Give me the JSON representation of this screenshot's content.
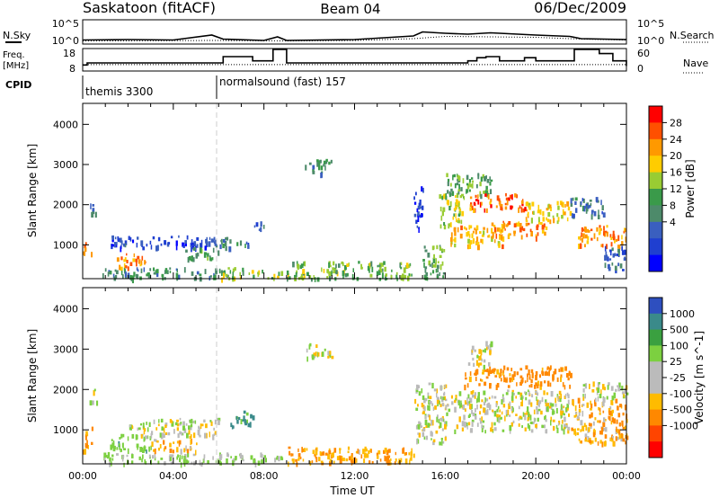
{
  "header": {
    "station": "Saskatoon (fitACF)",
    "beam": "Beam 04",
    "date": "06/Dec/2009"
  },
  "noise_panel": {
    "left_label": "N.Sky",
    "right_label": "N.Search",
    "left_ticks": [
      "10^5",
      "10^0"
    ],
    "right_ticks": [
      "10^5",
      "10^0"
    ]
  },
  "freq_panel": {
    "left_label_line1": "Freq.",
    "left_label_line2": "[MHz]",
    "right_label": "Nave",
    "left_ticks": [
      "18",
      "8"
    ],
    "right_ticks": [
      "60",
      "0"
    ]
  },
  "cpid_panel": {
    "label": "CPID",
    "segments": [
      {
        "start_hour": 0.0,
        "end_hour": 6.0,
        "text": "themis 3300"
      },
      {
        "start_hour": 6.0,
        "end_hour": 24.0,
        "text": "normalsound (fast) 157"
      }
    ]
  },
  "colorbars": {
    "power": {
      "label": "Power [dB]",
      "tick_labels": [
        "28",
        "24",
        "20",
        "16",
        "12",
        "8",
        "4"
      ],
      "colors": [
        "#ff0000",
        "#ff5000",
        "#ff9900",
        "#ffcc00",
        "#99cc33",
        "#3a9a4a",
        "#4d8a6a",
        "#3a5fbf",
        "#1f3fd0",
        "#0000ff"
      ]
    },
    "velocity": {
      "label": "Velocity [m s^-1]",
      "tick_labels": [
        "1000",
        "500",
        "100",
        "25",
        "-25",
        "-100",
        "-500",
        "-1000"
      ],
      "colors": [
        "#2e4fbf",
        "#3a8a8a",
        "#3aa040",
        "#7cd040",
        "#bbbbbb",
        "#bbbbbb",
        "#ffbb00",
        "#ff8800",
        "#ff4400",
        "#ff0000"
      ]
    }
  },
  "chart_data": [
    {
      "type": "line",
      "name": "noise",
      "x_unit": "hours UT",
      "ylim_log10": [
        0,
        5
      ],
      "series": [
        {
          "name": "N.Sky",
          "x": [
            0,
            2,
            4,
            5.7,
            6.2,
            8,
            8.6,
            9,
            12,
            14.6,
            15,
            16,
            17,
            18,
            20,
            21.5,
            22,
            24
          ],
          "log10_y": [
            0.7,
            0.8,
            0.7,
            1.8,
            0.9,
            0.6,
            1.4,
            0.6,
            0.8,
            1.6,
            2.5,
            2.2,
            2.0,
            2.3,
            1.8,
            1.5,
            1.0,
            0.8
          ]
        },
        {
          "name": "N.Search",
          "x": [
            0,
            6,
            9,
            12,
            14.6,
            16,
            18,
            20,
            22,
            24
          ],
          "log10_y": [
            0.5,
            0.6,
            0.5,
            0.6,
            1.0,
            1.5,
            1.4,
            1.3,
            0.9,
            0.7
          ]
        }
      ]
    },
    {
      "type": "line",
      "name": "frequency",
      "x_unit": "hours UT",
      "series": [
        {
          "name": "Freq.",
          "axis": "left",
          "ylim": [
            8,
            18
          ],
          "x": [
            0,
            0.2,
            6.0,
            6.2,
            7.3,
            7.5,
            8.2,
            8.4,
            8.8,
            9.0,
            12.0,
            13.0,
            16.5,
            17.0,
            17.4,
            17.8,
            18.4,
            19.5,
            20.0,
            21.5,
            21.7,
            22.4,
            22.8,
            23.4,
            24
          ],
          "y": [
            10.5,
            11.5,
            11.5,
            14.5,
            14.5,
            12.5,
            12.5,
            18.0,
            18.0,
            11.5,
            11.5,
            11.5,
            11.5,
            12.5,
            14.0,
            14.5,
            12.5,
            14.0,
            12.5,
            12.5,
            18.0,
            18.0,
            16.0,
            12.5,
            10.0
          ]
        },
        {
          "name": "Nave",
          "axis": "right",
          "ylim": [
            0,
            60
          ],
          "x": [
            0,
            24
          ],
          "y": [
            16,
            16
          ]
        }
      ]
    },
    {
      "type": "heatmap",
      "title": "Power",
      "xlabel": "Time UT",
      "ylabel": "Slant Range [km]",
      "xlim_hours": [
        0,
        24
      ],
      "ylim_km": [
        180,
        4500
      ],
      "x_tick_labels": [
        "00:00",
        "04:00",
        "08:00",
        "12:00",
        "16:00",
        "20:00",
        "00:00"
      ],
      "y_tick_labels": [
        "1000",
        "2000",
        "3000",
        "4000"
      ],
      "regions": [
        {
          "t0": 0.0,
          "t1": 0.4,
          "r0": 800,
          "r1": 1100,
          "value_db": 26
        },
        {
          "t0": 0.3,
          "t1": 0.6,
          "r0": 1700,
          "r1": 2100,
          "value_db": 10
        },
        {
          "t0": 1.5,
          "t1": 2.8,
          "r0": 450,
          "r1": 800,
          "value_db": 24
        },
        {
          "t0": 0.8,
          "t1": 6.0,
          "r0": 180,
          "r1": 450,
          "value_db": 12
        },
        {
          "t0": 1.2,
          "t1": 6.0,
          "r0": 950,
          "r1": 1250,
          "value_db": 6
        },
        {
          "t0": 4.5,
          "t1": 6.0,
          "r0": 650,
          "r1": 950,
          "value_db": 14
        },
        {
          "t0": 6.0,
          "t1": 7.3,
          "r0": 950,
          "r1": 1200,
          "value_db": 10
        },
        {
          "t0": 6.0,
          "t1": 8.8,
          "r0": 180,
          "r1": 450,
          "value_db": 16
        },
        {
          "t0": 7.5,
          "t1": 8.0,
          "r0": 1400,
          "r1": 1600,
          "value_db": 8
        },
        {
          "t0": 9.0,
          "t1": 14.6,
          "r0": 180,
          "r1": 600,
          "value_db": 16
        },
        {
          "t0": 9.8,
          "t1": 11.0,
          "r0": 2800,
          "r1": 3150,
          "value_db": 12
        },
        {
          "t0": 14.6,
          "t1": 15.0,
          "r0": 1400,
          "r1": 2500,
          "value_db": 6
        },
        {
          "t0": 15.0,
          "t1": 16.0,
          "r0": 180,
          "r1": 1000,
          "value_db": 14
        },
        {
          "t0": 15.6,
          "t1": 16.8,
          "r0": 1500,
          "r1": 2300,
          "value_db": 18
        },
        {
          "t0": 16.0,
          "t1": 18.0,
          "r0": 2200,
          "r1": 2800,
          "value_db": 14
        },
        {
          "t0": 16.2,
          "t1": 18.5,
          "r0": 1000,
          "r1": 1500,
          "value_db": 22
        },
        {
          "t0": 17.0,
          "t1": 19.5,
          "r0": 1900,
          "r1": 2300,
          "value_db": 26
        },
        {
          "t0": 18.0,
          "t1": 20.5,
          "r0": 1200,
          "r1": 1600,
          "value_db": 24
        },
        {
          "t0": 19.5,
          "t1": 21.5,
          "r0": 1600,
          "r1": 2100,
          "value_db": 20
        },
        {
          "t0": 21.8,
          "t1": 24.0,
          "r0": 1000,
          "r1": 1500,
          "value_db": 24
        },
        {
          "t0": 21.5,
          "t1": 23.0,
          "r0": 1700,
          "r1": 2200,
          "value_db": 10
        },
        {
          "t0": 23.0,
          "t1": 24.0,
          "r0": 400,
          "r1": 1000,
          "value_db": 8
        }
      ]
    },
    {
      "type": "heatmap",
      "title": "Velocity",
      "xlabel": "Time UT",
      "ylabel": "Slant Range [km]",
      "xlim_hours": [
        0,
        24
      ],
      "ylim_km": [
        180,
        4500
      ],
      "x_tick_labels": [
        "00:00",
        "04:00",
        "08:00",
        "12:00",
        "16:00",
        "20:00",
        "00:00"
      ],
      "y_tick_labels": [
        "1000",
        "2000",
        "3000",
        "4000"
      ],
      "regions": [
        {
          "t0": 0.0,
          "t1": 0.4,
          "r0": 500,
          "r1": 1100,
          "value_ms": -150
        },
        {
          "t0": 0.3,
          "t1": 0.6,
          "r0": 1700,
          "r1": 2100,
          "value_ms": 0
        },
        {
          "t0": 1.2,
          "t1": 3.0,
          "r0": 500,
          "r1": 900,
          "value_ms": 200
        },
        {
          "t0": 0.8,
          "t1": 6.0,
          "r0": 180,
          "r1": 450,
          "value_ms": 100
        },
        {
          "t0": 2.0,
          "t1": 6.0,
          "r0": 850,
          "r1": 1300,
          "value_ms": 0
        },
        {
          "t0": 3.0,
          "t1": 5.0,
          "r0": 500,
          "r1": 800,
          "value_ms": -150
        },
        {
          "t0": 6.5,
          "t1": 7.5,
          "r0": 1100,
          "r1": 1500,
          "value_ms": 400
        },
        {
          "t0": 6.0,
          "t1": 8.8,
          "r0": 180,
          "r1": 450,
          "value_ms": 100
        },
        {
          "t0": 9.0,
          "t1": 14.6,
          "r0": 180,
          "r1": 600,
          "value_ms": -200
        },
        {
          "t0": 9.8,
          "t1": 11.0,
          "r0": 2800,
          "r1": 3150,
          "value_ms": 0
        },
        {
          "t0": 14.6,
          "t1": 16.0,
          "r0": 700,
          "r1": 2200,
          "value_ms": 0
        },
        {
          "t0": 16.0,
          "t1": 21.5,
          "r0": 1000,
          "r1": 2000,
          "value_ms": 0
        },
        {
          "t0": 16.8,
          "t1": 21.5,
          "r0": 2100,
          "r1": 2600,
          "value_ms": -300
        },
        {
          "t0": 17.0,
          "t1": 18.0,
          "r0": 2600,
          "r1": 3200,
          "value_ms": 0
        },
        {
          "t0": 21.5,
          "t1": 24.0,
          "r0": 700,
          "r1": 1800,
          "value_ms": -150
        },
        {
          "t0": 22.0,
          "t1": 24.0,
          "r0": 1800,
          "r1": 2200,
          "value_ms": 0
        }
      ]
    }
  ]
}
